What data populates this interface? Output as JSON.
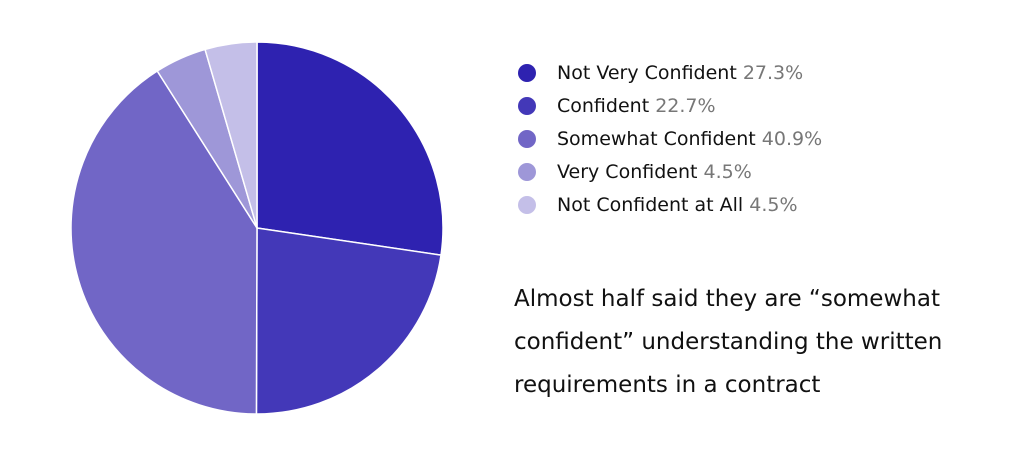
{
  "chart_data": {
    "type": "pie",
    "categories": [
      "Not Very Confident",
      "Confident",
      "Somewhat Confident",
      "Very Confident",
      "Not Confident at All"
    ],
    "values": [
      27.3,
      22.7,
      40.9,
      4.5,
      4.5
    ],
    "value_labels": [
      "27.3%",
      "22.7%",
      "40.9%",
      "4.5%",
      "4.5%"
    ],
    "colors": [
      "#2e22b0",
      "#4338b8",
      "#7166c6",
      "#9e97d8",
      "#c4bfe8"
    ],
    "annotation": "Almost half said they are “somewhat confident” understanding the written requirements in a contract"
  }
}
